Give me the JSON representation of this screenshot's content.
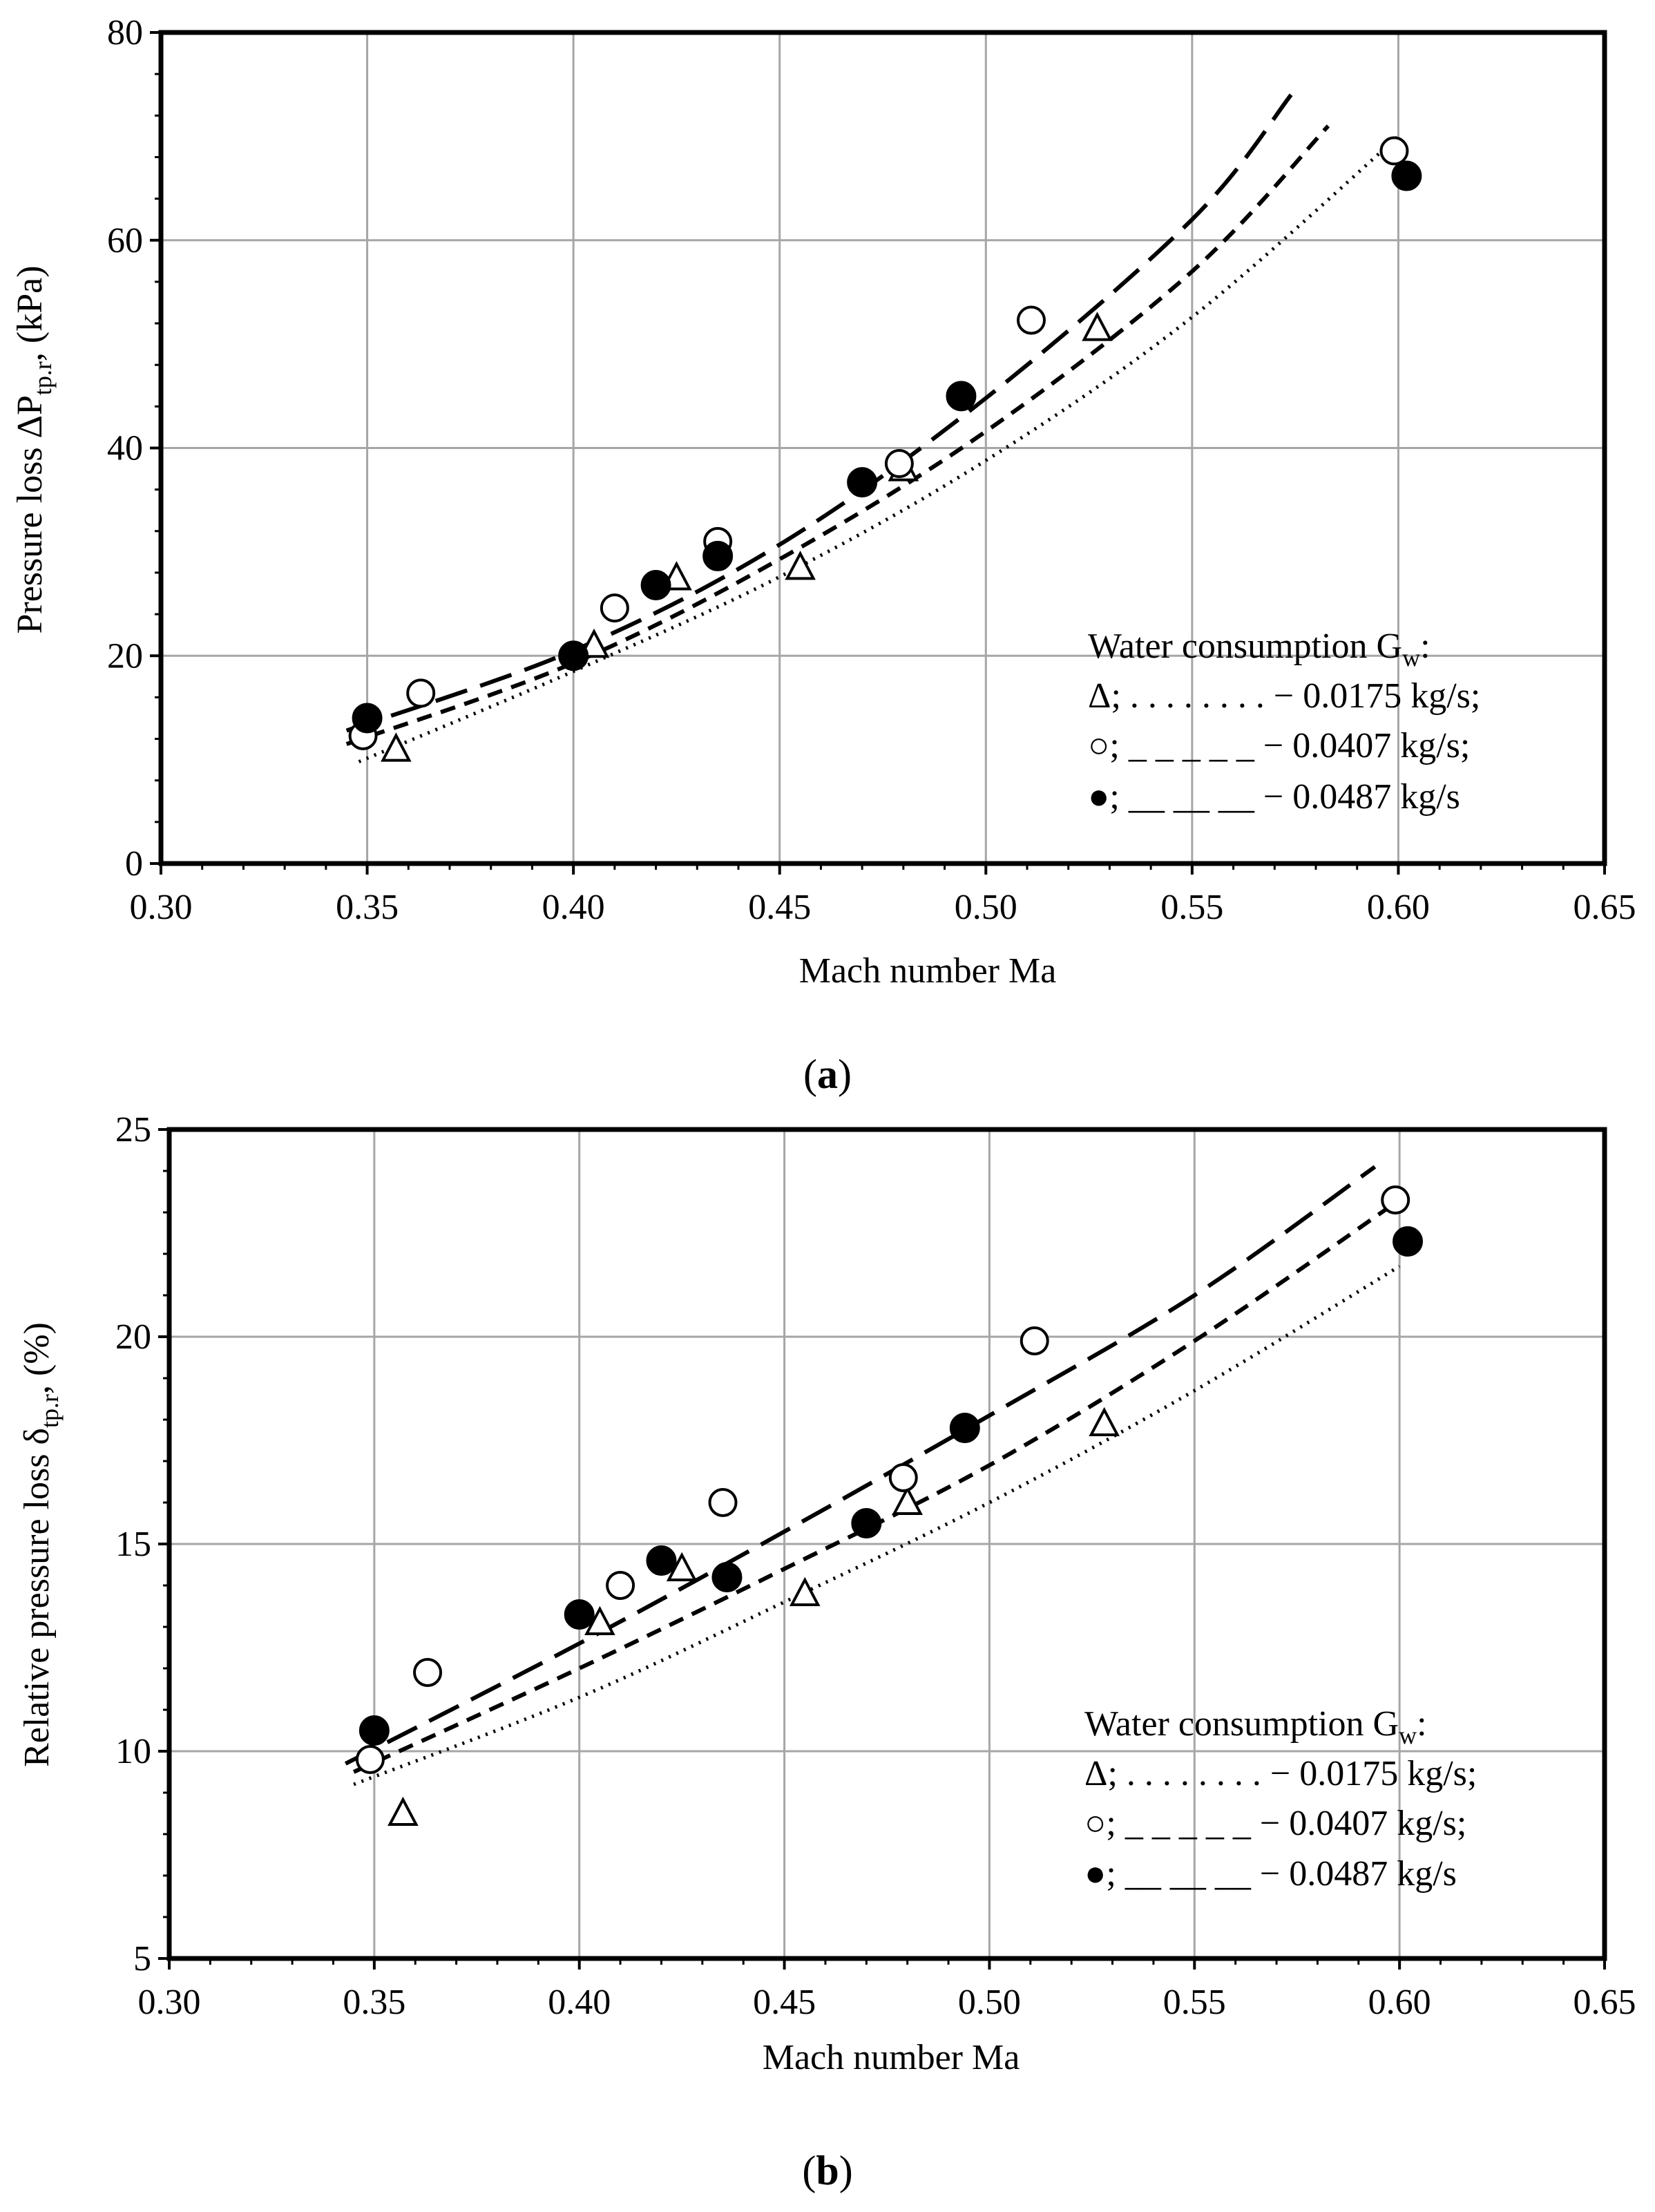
{
  "chart_data": [
    {
      "id": "a",
      "type": "scatter",
      "caption_letter": "a",
      "xlabel": "Mach number Ma",
      "ylabel": {
        "main": "Pressure loss ΔP",
        "sub": "tp.r",
        "unit": ", (kPa)"
      },
      "xlim": [
        0.3,
        0.65
      ],
      "ylim": [
        0,
        80
      ],
      "xticks": [
        0.3,
        0.35,
        0.4,
        0.45,
        0.5,
        0.55,
        0.6,
        0.65
      ],
      "yticks": [
        0,
        20,
        40,
        60,
        80
      ],
      "xtick_labels": [
        "0.30",
        "0.35",
        "0.40",
        "0.45",
        "0.50",
        "0.55",
        "0.60",
        "0.65"
      ],
      "ytick_labels": [
        "0",
        "20",
        "40",
        "60",
        "80"
      ],
      "grid": true,
      "legend": {
        "title": "Water consumption G",
        "title_sub": "w",
        "title_suffix": ":",
        "entries": [
          {
            "symbol": "Δ",
            "sep": "; . . . . . . . . ",
            "text": "− 0.0175 kg/s;"
          },
          {
            "symbol": "○",
            "sep": "; _ _ _ _ _ ",
            "text": "− 0.0407 kg/s;"
          },
          {
            "symbol": "●",
            "sep": "; __ __ __ ",
            "text": "− 0.0487 kg/s"
          }
        ],
        "placement": "bottom-right"
      },
      "series": [
        {
          "name": "0.0175 kg/s",
          "marker": "triangle",
          "line": "dotted",
          "x": [
            0.357,
            0.405,
            0.425,
            0.455,
            0.48,
            0.527
          ],
          "y": [
            11,
            21,
            27.5,
            28.5,
            38,
            51.5
          ],
          "fit_x": [
            0.348,
            0.4,
            0.45,
            0.5,
            0.55,
            0.6
          ],
          "fit_y": [
            9.8,
            18.5,
            27.6,
            38.8,
            52.6,
            70
          ]
        },
        {
          "name": "0.0407 kg/s",
          "marker": "circle-open",
          "line": "short-dash",
          "x": [
            0.349,
            0.363,
            0.41,
            0.435,
            0.479,
            0.511,
            0.599
          ],
          "y": [
            12.3,
            16.4,
            24.6,
            31,
            38.5,
            52.3,
            68.6
          ],
          "fit_x": [
            0.345,
            0.4,
            0.45,
            0.5,
            0.55,
            0.583
          ],
          "fit_y": [
            11.5,
            19.3,
            29.3,
            41.6,
            57,
            71
          ]
        },
        {
          "name": "0.0487 kg/s",
          "marker": "circle-filled",
          "line": "long-dash",
          "x": [
            0.35,
            0.4,
            0.42,
            0.435,
            0.47,
            0.494,
            0.602
          ],
          "y": [
            14,
            20,
            26.8,
            29.6,
            36.7,
            45,
            66.2
          ],
          "fit_x": [
            0.345,
            0.4,
            0.45,
            0.5,
            0.55,
            0.574
          ],
          "fit_y": [
            12.8,
            20.5,
            30.7,
            44.8,
            62,
            74
          ]
        }
      ]
    },
    {
      "id": "b",
      "type": "scatter",
      "caption_letter": "b",
      "xlabel": "Mach number Ma",
      "ylabel": {
        "main": "Relative pressure loss δ",
        "sub": "tp.r",
        "unit": ", (%)"
      },
      "xlim": [
        0.3,
        0.65
      ],
      "ylim": [
        5,
        25
      ],
      "xticks": [
        0.3,
        0.35,
        0.4,
        0.45,
        0.5,
        0.55,
        0.6,
        0.65
      ],
      "yticks": [
        5,
        10,
        15,
        20,
        25
      ],
      "xtick_labels": [
        "0.30",
        "0.35",
        "0.40",
        "0.45",
        "0.50",
        "0.55",
        "0.60",
        "0.65"
      ],
      "ytick_labels": [
        "5",
        "10",
        "15",
        "20",
        "25"
      ],
      "grid": true,
      "legend": {
        "title": "Water consumption G",
        "title_sub": "w",
        "title_suffix": ":",
        "entries": [
          {
            "symbol": "Δ",
            "sep": "; . . . . . . . . ",
            "text": "− 0.0175 kg/s;"
          },
          {
            "symbol": "○",
            "sep": "; _ _ _ _ _ ",
            "text": "− 0.0407 kg/s;"
          },
          {
            "symbol": "●",
            "sep": "; __ __ __ ",
            "text": "− 0.0487 kg/s"
          }
        ],
        "placement": "bottom-right"
      },
      "series": [
        {
          "name": "0.0175 kg/s",
          "marker": "triangle",
          "line": "dotted",
          "x": [
            0.357,
            0.405,
            0.425,
            0.455,
            0.48,
            0.528
          ],
          "y": [
            8.5,
            13.1,
            14.4,
            13.8,
            16,
            17.9
          ],
          "fit_x": [
            0.345,
            0.4,
            0.45,
            0.5,
            0.55,
            0.6
          ],
          "fit_y": [
            9.2,
            11.3,
            13.6,
            16,
            18.7,
            21.7
          ]
        },
        {
          "name": "0.0407 kg/s",
          "marker": "circle-open",
          "line": "short-dash",
          "x": [
            0.349,
            0.363,
            0.41,
            0.435,
            0.479,
            0.511,
            0.599
          ],
          "y": [
            9.8,
            11.9,
            14,
            16,
            16.6,
            19.9,
            23.3
          ],
          "fit_x": [
            0.345,
            0.4,
            0.45,
            0.5,
            0.55,
            0.6
          ],
          "fit_y": [
            9.5,
            12,
            14.4,
            16.9,
            19.9,
            23.3
          ]
        },
        {
          "name": "0.0487 kg/s",
          "marker": "circle-filled",
          "line": "long-dash",
          "x": [
            0.35,
            0.4,
            0.42,
            0.436,
            0.47,
            0.494,
            0.602
          ],
          "y": [
            10.5,
            13.3,
            14.6,
            14.2,
            15.5,
            17.8,
            22.3
          ],
          "fit_x": [
            0.343,
            0.4,
            0.45,
            0.5,
            0.55,
            0.594
          ],
          "fit_y": [
            9.7,
            12.6,
            15.3,
            18.1,
            21,
            24.1
          ]
        }
      ]
    }
  ]
}
